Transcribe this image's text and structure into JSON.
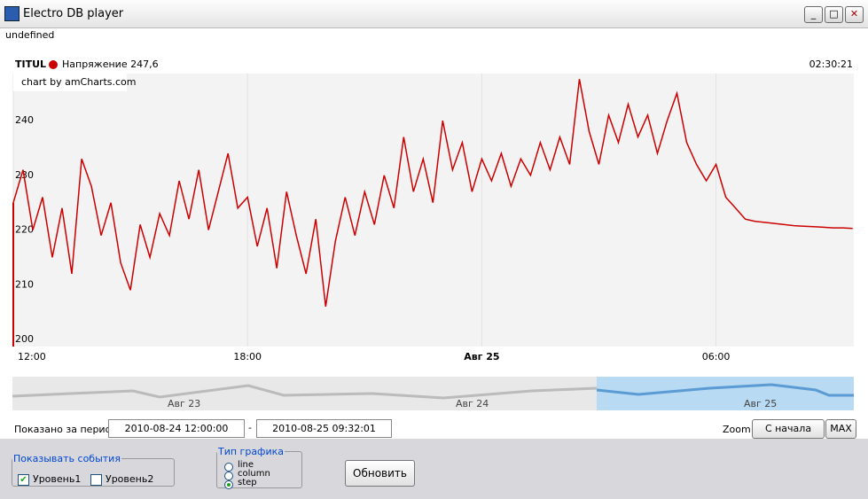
{
  "window": {
    "title": "Electro DB player",
    "status": "undefined"
  },
  "chart_data": {
    "type": "line",
    "title": "TITUL",
    "legend_text": "Напряжение 247,6",
    "time": "02:30:21",
    "credit": "chart by amCharts.com",
    "x": [
      0,
      0.25,
      0.5,
      0.75,
      1,
      1.25,
      1.5,
      1.75,
      2,
      2.25,
      2.5,
      2.75,
      3,
      3.25,
      3.5,
      3.75,
      4,
      4.25,
      4.5,
      4.75,
      5,
      5.25,
      5.5,
      5.75,
      6,
      6.25,
      6.5,
      6.75,
      7,
      7.25,
      7.5,
      7.75,
      8,
      8.25,
      8.5,
      8.75,
      9,
      9.25,
      9.5,
      9.75,
      10,
      10.25,
      10.5,
      10.75,
      11,
      11.25,
      11.5,
      11.75,
      12,
      12.25,
      12.5,
      12.75,
      13,
      13.25,
      13.5,
      13.75,
      14,
      14.25,
      14.5,
      14.75,
      15,
      15.25,
      15.5,
      15.75,
      16,
      16.25,
      16.5,
      16.75,
      17,
      17.25,
      17.5,
      17.75,
      18,
      18.25,
      18.5,
      18.75,
      19,
      19.25,
      19.5,
      19.75,
      20,
      20.25,
      20.5,
      20.75,
      21,
      21.25,
      21.5
    ],
    "series": [
      {
        "name": "Напряжение",
        "color": "#cc0000",
        "values": [
          225,
          231,
          220,
          226,
          215,
          224,
          212,
          233,
          228,
          219,
          225,
          214,
          209,
          221,
          215,
          223,
          219,
          229,
          222,
          231,
          220,
          227,
          234,
          224,
          226,
          217,
          224,
          213,
          227,
          219,
          212,
          222,
          206,
          218,
          226,
          219,
          227,
          221,
          230,
          224,
          237,
          227,
          233,
          225,
          240,
          231,
          236,
          227,
          233,
          229,
          234,
          228,
          233,
          230,
          236,
          231,
          237,
          232,
          247.6,
          238,
          232,
          241,
          236,
          243,
          237,
          241,
          234,
          240,
          245,
          236,
          232,
          229,
          232,
          226,
          224,
          222,
          221.6,
          221.4,
          221.2,
          221,
          220.8,
          220.7,
          220.6,
          220.5,
          220.4,
          220.4,
          220.3
        ]
      }
    ],
    "xlim": [
      0,
      21.53
    ],
    "ylim": [
      198.7,
      248.6
    ],
    "yticks": [
      200,
      210,
      220,
      230,
      240
    ],
    "xticks": [
      {
        "value": 0,
        "label": "12:00"
      },
      {
        "value": 6,
        "label": "18:00"
      },
      {
        "value": 12,
        "label": "Авг 25"
      },
      {
        "value": 18,
        "label": "06:00"
      }
    ],
    "scroller_labels": [
      "Авг 23",
      "Авг 24",
      "Авг 25"
    ],
    "grid": true
  },
  "period": {
    "label": "Показано за период:",
    "from": "2010-08-24 12:00:00",
    "separator": "-",
    "to": "2010-08-25 09:32:01"
  },
  "zoom": {
    "label": "Zoom:",
    "buttons": [
      "С начала года",
      "MAX"
    ]
  },
  "events": {
    "title": "Показывать события",
    "items": [
      {
        "label": "Уровень1",
        "checked": true
      },
      {
        "label": "Уровень2",
        "checked": false
      }
    ]
  },
  "chart_type": {
    "title": "Тип графика",
    "options": [
      "line",
      "column",
      "step"
    ],
    "selected": 2
  },
  "refresh": "Обновить"
}
